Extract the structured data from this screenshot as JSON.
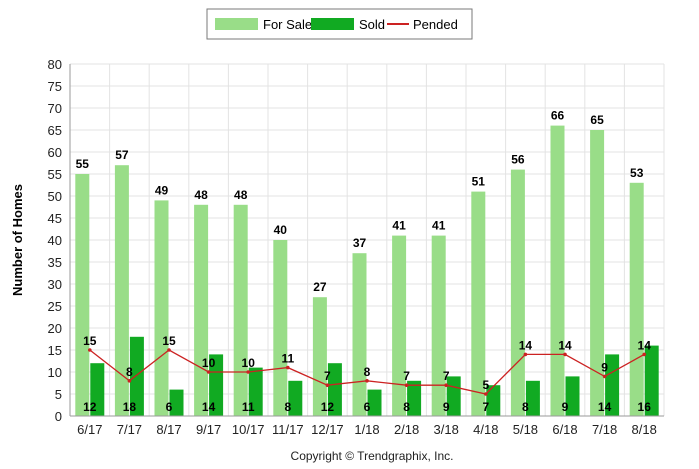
{
  "chart_data": {
    "type": "bar",
    "categories": [
      "6/17",
      "7/17",
      "8/17",
      "9/17",
      "10/17",
      "11/17",
      "12/17",
      "1/18",
      "2/18",
      "3/18",
      "4/18",
      "5/18",
      "6/18",
      "7/18",
      "8/18"
    ],
    "series": [
      {
        "name": "For Sale",
        "type": "bar",
        "color": "#99dd88",
        "values": [
          55,
          57,
          49,
          48,
          48,
          40,
          27,
          37,
          41,
          41,
          51,
          56,
          66,
          65,
          53
        ]
      },
      {
        "name": "Sold",
        "type": "bar",
        "color": "#11aa22",
        "values": [
          12,
          18,
          6,
          14,
          11,
          8,
          12,
          6,
          8,
          9,
          7,
          8,
          9,
          14,
          16
        ]
      },
      {
        "name": "Pended",
        "type": "line",
        "color": "#cc2222",
        "values": [
          15,
          8,
          15,
          10,
          10,
          11,
          7,
          8,
          7,
          7,
          5,
          14,
          14,
          9,
          14
        ]
      }
    ],
    "ylabel": "Number of Homes",
    "xlabel": "",
    "ylim": [
      0,
      80
    ],
    "yticks": [
      0,
      5,
      10,
      15,
      20,
      25,
      30,
      35,
      40,
      45,
      50,
      55,
      60,
      65,
      70,
      75,
      80
    ],
    "grid": true,
    "legend": "top-center"
  },
  "footer": {
    "copyright": "Copyright © Trendgraphix, Inc."
  }
}
